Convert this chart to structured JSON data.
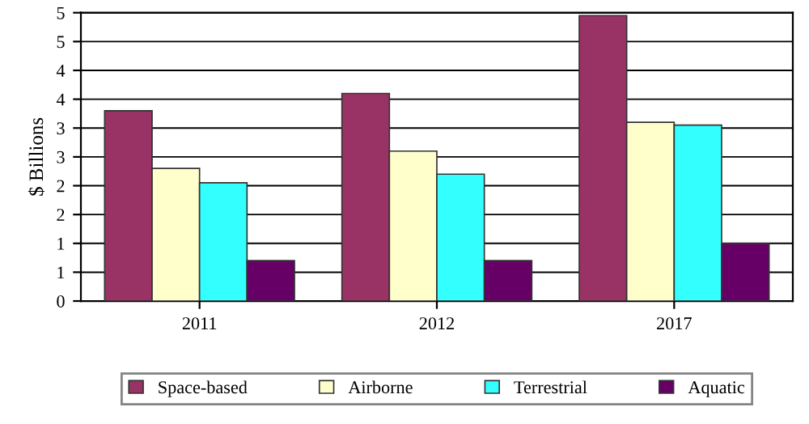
{
  "chart_data": {
    "type": "bar",
    "ylabel": "$ Billions",
    "categories": [
      "2011",
      "2012",
      "2017"
    ],
    "series": [
      {
        "name": "Space-based",
        "color": "#993366",
        "values": [
          3.3,
          3.6,
          4.95
        ]
      },
      {
        "name": "Airborne",
        "color": "#ffffcc",
        "values": [
          2.3,
          2.6,
          3.1
        ]
      },
      {
        "name": "Terrestrial",
        "color": "#33ffff",
        "values": [
          2.05,
          2.2,
          3.05
        ]
      },
      {
        "name": "Aquatic",
        "color": "#660066",
        "values": [
          0.7,
          0.7,
          1.0
        ]
      }
    ],
    "ylim": [
      0,
      5
    ],
    "yticks": [
      0,
      {
        "value": 0.5,
        "label": "1"
      },
      1,
      {
        "value": 1.5,
        "label": "2"
      },
      2,
      {
        "value": 2.5,
        "label": "3"
      },
      3,
      {
        "value": 3.5,
        "label": "4"
      },
      4,
      {
        "value": 4.5,
        "label": "5"
      },
      5
    ],
    "grid": "y",
    "legend": "bottom"
  }
}
